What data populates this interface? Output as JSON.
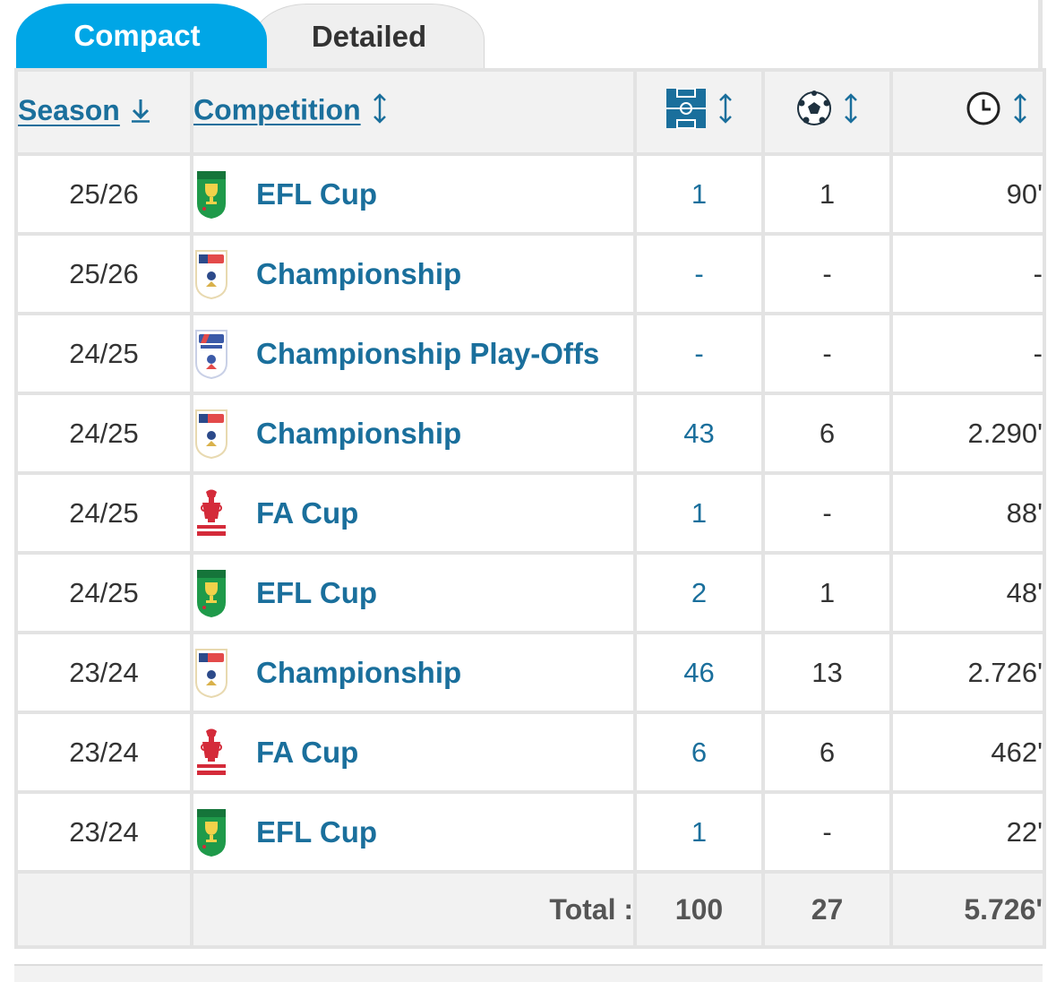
{
  "tabs": {
    "compact": "Compact",
    "detailed": "Detailed",
    "active": "compact"
  },
  "header": {
    "season": "Season",
    "competition": "Competition",
    "apps_icon": "pitch-icon",
    "goals_icon": "football-icon",
    "minutes_icon": "clock-icon"
  },
  "colors": {
    "accent": "#00a6e6",
    "link": "#1a6f9c",
    "header_bg": "#f2f2f2",
    "grid": "#e3e3e3",
    "efl_green": "#1f9a4a",
    "fa_red": "#d42b3a"
  },
  "rows": [
    {
      "season": "25/26",
      "competition": "EFL Cup",
      "logo": "efl",
      "apps": "1",
      "goals": "1",
      "minutes": "90'"
    },
    {
      "season": "25/26",
      "competition": "Championship",
      "logo": "championship",
      "apps": "-",
      "goals": "-",
      "minutes": "-"
    },
    {
      "season": "24/25",
      "competition": "Championship Play-Offs",
      "logo": "playoffs",
      "apps": "-",
      "goals": "-",
      "minutes": "-"
    },
    {
      "season": "24/25",
      "competition": "Championship",
      "logo": "championship",
      "apps": "43",
      "goals": "6",
      "minutes": "2.290'"
    },
    {
      "season": "24/25",
      "competition": "FA Cup",
      "logo": "facup",
      "apps": "1",
      "goals": "-",
      "minutes": "88'"
    },
    {
      "season": "24/25",
      "competition": "EFL Cup",
      "logo": "efl",
      "apps": "2",
      "goals": "1",
      "minutes": "48'"
    },
    {
      "season": "23/24",
      "competition": "Championship",
      "logo": "championship",
      "apps": "46",
      "goals": "13",
      "minutes": "2.726'"
    },
    {
      "season": "23/24",
      "competition": "FA Cup",
      "logo": "facup",
      "apps": "6",
      "goals": "6",
      "minutes": "462'"
    },
    {
      "season": "23/24",
      "competition": "EFL Cup",
      "logo": "efl",
      "apps": "1",
      "goals": "-",
      "minutes": "22'"
    }
  ],
  "totals": {
    "label": "Total :",
    "apps": "100",
    "goals": "27",
    "minutes": "5.726'"
  }
}
